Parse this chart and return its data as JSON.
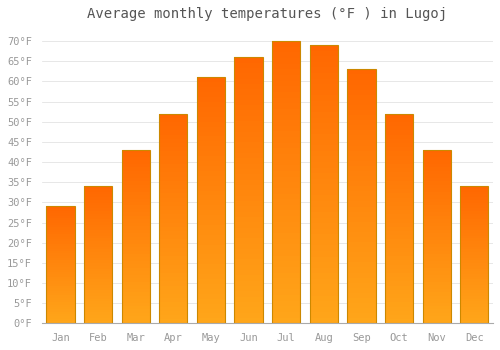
{
  "months": [
    "Jan",
    "Feb",
    "Mar",
    "Apr",
    "May",
    "Jun",
    "Jul",
    "Aug",
    "Sep",
    "Oct",
    "Nov",
    "Dec"
  ],
  "values": [
    29,
    34,
    43,
    52,
    61,
    66,
    70,
    69,
    63,
    52,
    43,
    34
  ],
  "bar_color_top": "#FFA500",
  "bar_color_bottom": "#FFD060",
  "bar_edge_color": "#CC8800",
  "background_color": "#ffffff",
  "grid_color": "#dddddd",
  "title": "Average monthly temperatures (°F ) in Lugoj",
  "title_fontsize": 10,
  "ylabel_ticks": [
    0,
    5,
    10,
    15,
    20,
    25,
    30,
    35,
    40,
    45,
    50,
    55,
    60,
    65,
    70
  ],
  "ylim": [
    0,
    73
  ],
  "label_color": "#999999",
  "font_family": "monospace",
  "tick_fontsize": 7.5
}
